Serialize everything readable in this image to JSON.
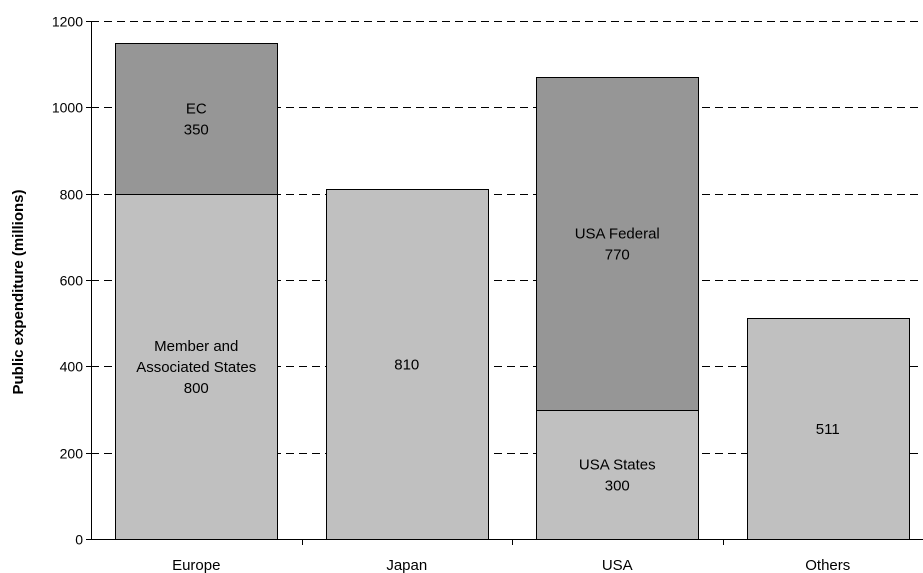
{
  "chart_data": {
    "type": "bar",
    "stacked": true,
    "title": "",
    "xlabel": "",
    "ylabel": "Public expenditure (millions)",
    "ylim": [
      0,
      1200
    ],
    "yticks": [
      0,
      200,
      400,
      600,
      800,
      1000,
      1200
    ],
    "grid": "horizontal dashed",
    "legend": "none",
    "categories": [
      "Europe",
      "Japan",
      "USA",
      "Others"
    ],
    "bars": [
      {
        "category": "Europe",
        "segments": [
          {
            "value": 800,
            "label": [
              "Member and",
              "Associated States",
              "800"
            ],
            "color": "#c0c0c0"
          },
          {
            "value": 350,
            "label": [
              "EC",
              "350"
            ],
            "color": "#969696"
          }
        ]
      },
      {
        "category": "Japan",
        "segments": [
          {
            "value": 810,
            "label": [
              "810"
            ],
            "color": "#c0c0c0"
          }
        ]
      },
      {
        "category": "USA",
        "segments": [
          {
            "value": 300,
            "label": [
              "USA States",
              "300"
            ],
            "color": "#c0c0c0"
          },
          {
            "value": 770,
            "label": [
              "USA Federal",
              "770"
            ],
            "color": "#969696"
          }
        ]
      },
      {
        "category": "Others",
        "segments": [
          {
            "value": 511,
            "label": [
              "511"
            ],
            "color": "#c0c0c0"
          }
        ]
      }
    ]
  }
}
